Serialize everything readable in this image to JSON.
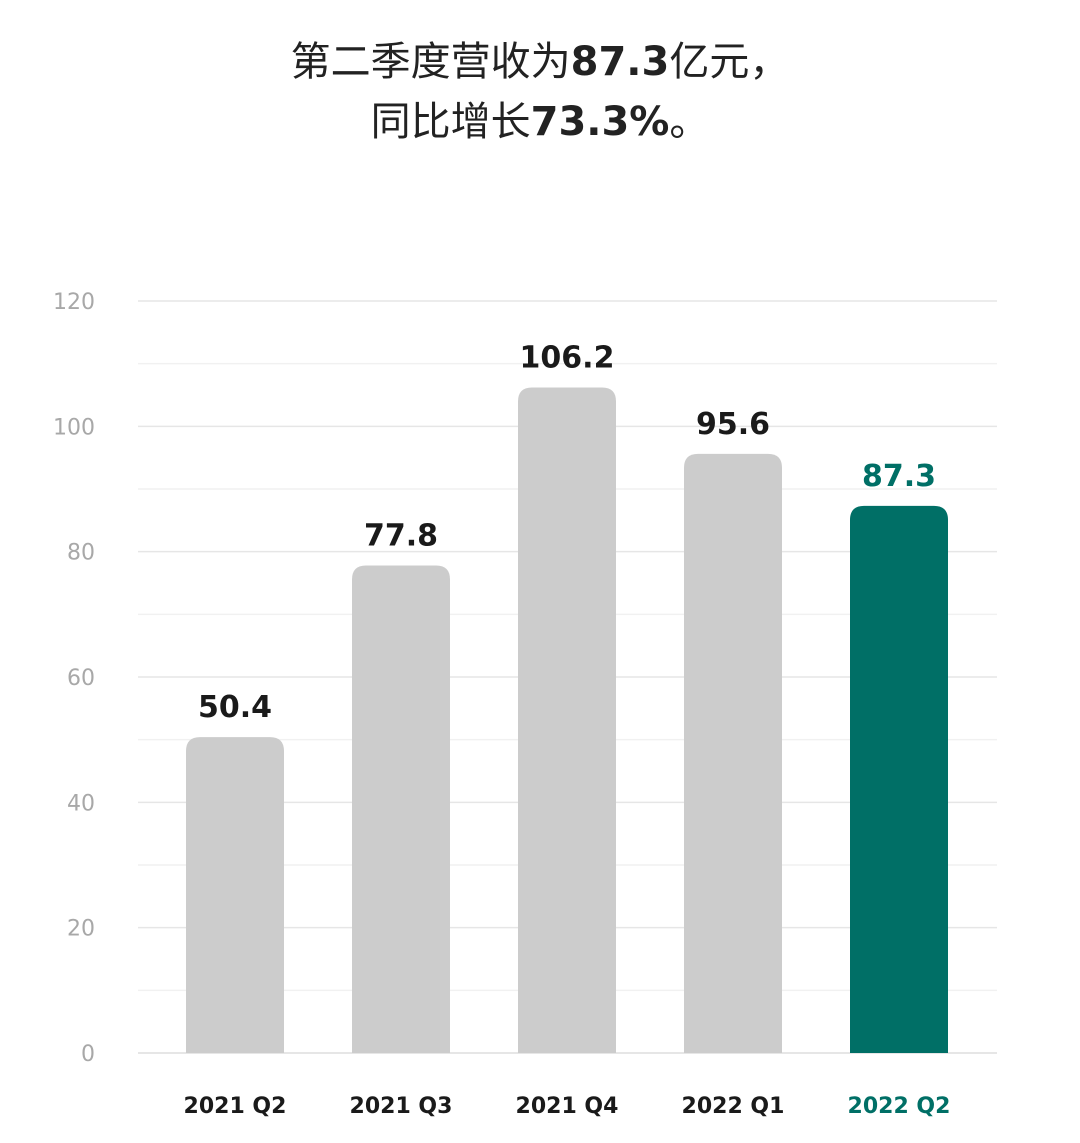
{
  "title": {
    "line1_pre": "第二季度营收为",
    "line1_bold": "87.3",
    "line1_post": "亿元，",
    "line2_pre": "同比增长",
    "line2_bold": "73.3%",
    "line2_post": "。"
  },
  "colors": {
    "bar_default": "#cccccc",
    "bar_highlight": "#006f66",
    "label_default": "#1a1a1a",
    "label_highlight": "#006f66",
    "grid": "#e6e6e6",
    "tick": "#a8a8a8"
  },
  "chart_data": {
    "type": "bar",
    "categories": [
      "2021 Q2",
      "2021 Q3",
      "2021 Q4",
      "2022 Q1",
      "2022 Q2"
    ],
    "values": [
      50.4,
      77.8,
      106.2,
      95.6,
      87.3
    ],
    "data_labels": [
      "50.4",
      "77.8",
      "106.2",
      "95.6",
      "87.3"
    ],
    "highlight_index": 4,
    "ylim": [
      0,
      120
    ],
    "yticks": [
      0,
      20,
      40,
      60,
      80,
      100,
      120
    ],
    "ytick_labels": [
      "0",
      "20",
      "40",
      "60",
      "80",
      "100",
      "120"
    ],
    "minor_grid_step": 10,
    "grid": true,
    "xlabel": "",
    "ylabel": ""
  }
}
